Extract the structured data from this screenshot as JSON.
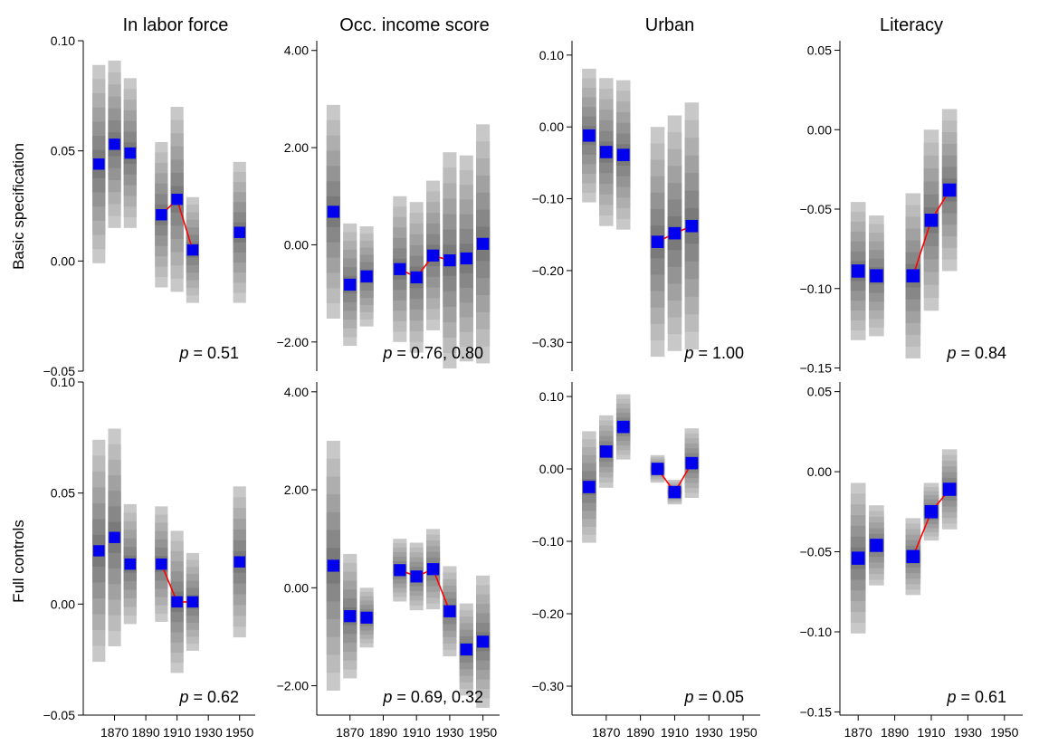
{
  "figure": {
    "columns": [
      "In labor force",
      "Occ. income score",
      "Urban",
      "Literacy"
    ],
    "rows": [
      "Basic specification",
      "Full controls"
    ],
    "x_ticks": [
      1870,
      1890,
      1910,
      1930,
      1950
    ]
  },
  "colors": {
    "estimate": "#0000ee",
    "trend": "#ff0000",
    "band_dark": "#7a7a7a",
    "band_light": "#c8c8c8"
  },
  "chart_data": [
    {
      "type": "scatter",
      "row": "Basic specification",
      "column": "In labor force",
      "title": "In labor force",
      "ylabel": "Basic specification",
      "ylim": [
        -0.05,
        0.1
      ],
      "yticks": [
        -0.05,
        0.0,
        0.05,
        0.1
      ],
      "ytick_labels": [
        "−0.05",
        "0.00",
        "0.05",
        "0.10"
      ],
      "xlim": [
        1850,
        1960
      ],
      "xticks": [
        1870,
        1890,
        1910,
        1930,
        1950
      ],
      "points": [
        {
          "x": 1860,
          "y": 0.044,
          "lo": -0.001,
          "hi": 0.089
        },
        {
          "x": 1870,
          "y": 0.053,
          "lo": 0.015,
          "hi": 0.091
        },
        {
          "x": 1880,
          "y": 0.049,
          "lo": 0.015,
          "hi": 0.083
        },
        {
          "x": 1900,
          "y": 0.021,
          "lo": -0.012,
          "hi": 0.054
        },
        {
          "x": 1910,
          "y": 0.028,
          "lo": -0.014,
          "hi": 0.07
        },
        {
          "x": 1920,
          "y": 0.005,
          "lo": -0.019,
          "hi": 0.029
        },
        {
          "x": 1950,
          "y": 0.013,
          "lo": -0.019,
          "hi": 0.045
        }
      ],
      "trend": [
        [
          1900,
          0.021
        ],
        [
          1910,
          0.028
        ],
        [
          1920,
          0.005
        ]
      ],
      "annotation": "= 0.51"
    },
    {
      "type": "scatter",
      "row": "Basic specification",
      "column": "Occ. income score",
      "title": "Occ. income score",
      "ylim": [
        -2.6,
        4.2
      ],
      "yticks": [
        -2.0,
        0.0,
        2.0,
        4.0
      ],
      "ytick_labels": [
        "−2.00",
        "0.00",
        "2.00",
        "4.00"
      ],
      "xlim": [
        1850,
        1960
      ],
      "xticks": [
        1870,
        1890,
        1910,
        1930,
        1950
      ],
      "points": [
        {
          "x": 1860,
          "y": 0.68,
          "lo": -1.52,
          "hi": 2.88
        },
        {
          "x": 1870,
          "y": -0.82,
          "lo": -2.08,
          "hi": 0.44
        },
        {
          "x": 1880,
          "y": -0.65,
          "lo": -1.68,
          "hi": 0.38
        },
        {
          "x": 1900,
          "y": -0.5,
          "lo": -2.0,
          "hi": 1.0
        },
        {
          "x": 1910,
          "y": -0.67,
          "lo": -2.22,
          "hi": 0.88
        },
        {
          "x": 1920,
          "y": -0.22,
          "lo": -1.76,
          "hi": 1.32
        },
        {
          "x": 1930,
          "y": -0.32,
          "lo": -2.55,
          "hi": 1.9
        },
        {
          "x": 1940,
          "y": -0.28,
          "lo": -2.4,
          "hi": 1.84
        },
        {
          "x": 1950,
          "y": 0.02,
          "lo": -2.44,
          "hi": 2.48
        }
      ],
      "trend": [
        [
          1900,
          -0.5
        ],
        [
          1910,
          -0.67
        ],
        [
          1920,
          -0.22
        ],
        [
          1930,
          -0.32
        ]
      ],
      "annotation": "= 0.76, 0.80"
    },
    {
      "type": "scatter",
      "row": "Basic specification",
      "column": "Urban",
      "title": "Urban",
      "ylim": [
        -0.34,
        0.12
      ],
      "yticks": [
        -0.3,
        -0.2,
        -0.1,
        0.0,
        0.1
      ],
      "ytick_labels": [
        "−0.30",
        "−0.20",
        "−0.10",
        "0.00",
        "0.10"
      ],
      "xlim": [
        1850,
        1960
      ],
      "xticks": [
        1870,
        1890,
        1910,
        1930,
        1950
      ],
      "points": [
        {
          "x": 1860,
          "y": -0.012,
          "lo": -0.105,
          "hi": 0.081
        },
        {
          "x": 1870,
          "y": -0.035,
          "lo": -0.138,
          "hi": 0.068
        },
        {
          "x": 1880,
          "y": -0.039,
          "lo": -0.143,
          "hi": 0.065
        },
        {
          "x": 1900,
          "y": -0.16,
          "lo": -0.32,
          "hi": 0.0
        },
        {
          "x": 1910,
          "y": -0.148,
          "lo": -0.312,
          "hi": 0.016
        },
        {
          "x": 1920,
          "y": -0.138,
          "lo": -0.31,
          "hi": 0.034
        }
      ],
      "trend": [
        [
          1900,
          -0.16
        ],
        [
          1910,
          -0.148
        ],
        [
          1920,
          -0.138
        ]
      ],
      "annotation": "= 1.00"
    },
    {
      "type": "scatter",
      "row": "Basic specification",
      "column": "Literacy",
      "title": "Literacy",
      "ylim": [
        -0.152,
        0.056
      ],
      "yticks": [
        -0.15,
        -0.1,
        -0.05,
        0.0,
        0.05
      ],
      "ytick_labels": [
        "−0.15",
        "−0.10",
        "−0.05",
        "0.00",
        "0.05"
      ],
      "xlim": [
        1860,
        1960
      ],
      "xticks": [
        1870,
        1890,
        1910,
        1930,
        1950
      ],
      "points": [
        {
          "x": 1870,
          "y": -0.089,
          "lo": -0.132,
          "hi": -0.045
        },
        {
          "x": 1880,
          "y": -0.092,
          "lo": -0.13,
          "hi": -0.054
        },
        {
          "x": 1900,
          "y": -0.092,
          "lo": -0.144,
          "hi": -0.04
        },
        {
          "x": 1910,
          "y": -0.057,
          "lo": -0.114,
          "hi": 0.0
        },
        {
          "x": 1920,
          "y": -0.038,
          "lo": -0.089,
          "hi": 0.013
        }
      ],
      "trend": [
        [
          1900,
          -0.092
        ],
        [
          1910,
          -0.057
        ],
        [
          1920,
          -0.038
        ]
      ],
      "annotation": "= 0.84"
    },
    {
      "type": "scatter",
      "row": "Full controls",
      "column": "In labor force",
      "ylabel": "Full controls",
      "ylim": [
        -0.05,
        0.1
      ],
      "yticks": [
        -0.05,
        0.0,
        0.05,
        0.1
      ],
      "ytick_labels": [
        "−0.05",
        "0.00",
        "0.05",
        "0.10"
      ],
      "xlim": [
        1850,
        1960
      ],
      "xticks": [
        1870,
        1890,
        1910,
        1930,
        1950
      ],
      "xtick_labels": [
        "1870",
        "1890",
        "1910",
        "1930",
        "1950"
      ],
      "points": [
        {
          "x": 1860,
          "y": 0.024,
          "lo": -0.026,
          "hi": 0.074
        },
        {
          "x": 1870,
          "y": 0.03,
          "lo": -0.019,
          "hi": 0.079
        },
        {
          "x": 1880,
          "y": 0.018,
          "lo": -0.009,
          "hi": 0.045
        },
        {
          "x": 1900,
          "y": 0.018,
          "lo": -0.008,
          "hi": 0.044
        },
        {
          "x": 1910,
          "y": 0.001,
          "lo": -0.031,
          "hi": 0.033
        },
        {
          "x": 1920,
          "y": 0.001,
          "lo": -0.021,
          "hi": 0.023
        },
        {
          "x": 1950,
          "y": 0.019,
          "lo": -0.015,
          "hi": 0.053
        }
      ],
      "trend": [
        [
          1900,
          0.018
        ],
        [
          1910,
          0.001
        ],
        [
          1920,
          0.001
        ]
      ],
      "annotation": "= 0.62"
    },
    {
      "type": "scatter",
      "row": "Full controls",
      "column": "Occ. income score",
      "ylim": [
        -2.6,
        4.2
      ],
      "yticks": [
        -2.0,
        0.0,
        2.0,
        4.0
      ],
      "ytick_labels": [
        "−2.00",
        "0.00",
        "2.00",
        "4.00"
      ],
      "xlim": [
        1850,
        1960
      ],
      "xticks": [
        1870,
        1890,
        1910,
        1930,
        1950
      ],
      "xtick_labels": [
        "1870",
        "1890",
        "1910",
        "1930",
        "1950"
      ],
      "points": [
        {
          "x": 1860,
          "y": 0.45,
          "lo": -2.1,
          "hi": 3.0
        },
        {
          "x": 1870,
          "y": -0.58,
          "lo": -1.85,
          "hi": 0.69
        },
        {
          "x": 1880,
          "y": -0.61,
          "lo": -1.22,
          "hi": 0.0
        },
        {
          "x": 1900,
          "y": 0.36,
          "lo": -0.28,
          "hi": 1.0
        },
        {
          "x": 1910,
          "y": 0.23,
          "lo": -0.46,
          "hi": 0.92
        },
        {
          "x": 1920,
          "y": 0.38,
          "lo": -0.44,
          "hi": 1.2
        },
        {
          "x": 1930,
          "y": -0.48,
          "lo": -1.4,
          "hi": 0.44
        },
        {
          "x": 1940,
          "y": -1.26,
          "lo": -2.2,
          "hi": -0.32
        },
        {
          "x": 1950,
          "y": -1.1,
          "lo": -2.45,
          "hi": 0.25
        }
      ],
      "trend": [
        [
          1900,
          0.36
        ],
        [
          1910,
          0.23
        ],
        [
          1920,
          0.38
        ],
        [
          1930,
          -0.48
        ]
      ],
      "annotation": "= 0.69, 0.32"
    },
    {
      "type": "scatter",
      "row": "Full controls",
      "column": "Urban",
      "ylim": [
        -0.34,
        0.12
      ],
      "yticks": [
        -0.3,
        -0.2,
        -0.1,
        0.0,
        0.1
      ],
      "ytick_labels": [
        "−0.30",
        "−0.20",
        "−0.10",
        "0.00",
        "0.10"
      ],
      "xlim": [
        1850,
        1960
      ],
      "xticks": [
        1870,
        1890,
        1910,
        1930,
        1950
      ],
      "xtick_labels": [
        "1870",
        "1890",
        "1910",
        "1930",
        "1950"
      ],
      "points": [
        {
          "x": 1860,
          "y": -0.025,
          "lo": -0.102,
          "hi": 0.052
        },
        {
          "x": 1870,
          "y": 0.024,
          "lo": -0.026,
          "hi": 0.074
        },
        {
          "x": 1880,
          "y": 0.058,
          "lo": 0.013,
          "hi": 0.103
        },
        {
          "x": 1900,
          "y": 0.0,
          "lo": -0.019,
          "hi": 0.019
        },
        {
          "x": 1910,
          "y": -0.032,
          "lo": -0.049,
          "hi": -0.015
        },
        {
          "x": 1920,
          "y": 0.008,
          "lo": -0.04,
          "hi": 0.056
        }
      ],
      "trend": [
        [
          1900,
          0.0
        ],
        [
          1910,
          -0.032
        ],
        [
          1920,
          0.008
        ]
      ],
      "annotation": "= 0.05"
    },
    {
      "type": "scatter",
      "row": "Full controls",
      "column": "Literacy",
      "ylim": [
        -0.152,
        0.056
      ],
      "yticks": [
        -0.15,
        -0.1,
        -0.05,
        0.0,
        0.05
      ],
      "ytick_labels": [
        "−0.15",
        "−0.10",
        "−0.05",
        "0.00",
        "0.05"
      ],
      "xlim": [
        1860,
        1960
      ],
      "xticks": [
        1870,
        1890,
        1910,
        1930,
        1950
      ],
      "xtick_labels": [
        "1870",
        "1890",
        "1910",
        "1930",
        "1950"
      ],
      "points": [
        {
          "x": 1870,
          "y": -0.054,
          "lo": -0.101,
          "hi": -0.007
        },
        {
          "x": 1880,
          "y": -0.046,
          "lo": -0.071,
          "hi": -0.021
        },
        {
          "x": 1900,
          "y": -0.053,
          "lo": -0.077,
          "hi": -0.029
        },
        {
          "x": 1910,
          "y": -0.025,
          "lo": -0.043,
          "hi": -0.007
        },
        {
          "x": 1920,
          "y": -0.011,
          "lo": -0.036,
          "hi": 0.014
        }
      ],
      "trend": [
        [
          1900,
          -0.053
        ],
        [
          1910,
          -0.025
        ],
        [
          1920,
          -0.011
        ]
      ],
      "annotation": "= 0.61"
    }
  ]
}
